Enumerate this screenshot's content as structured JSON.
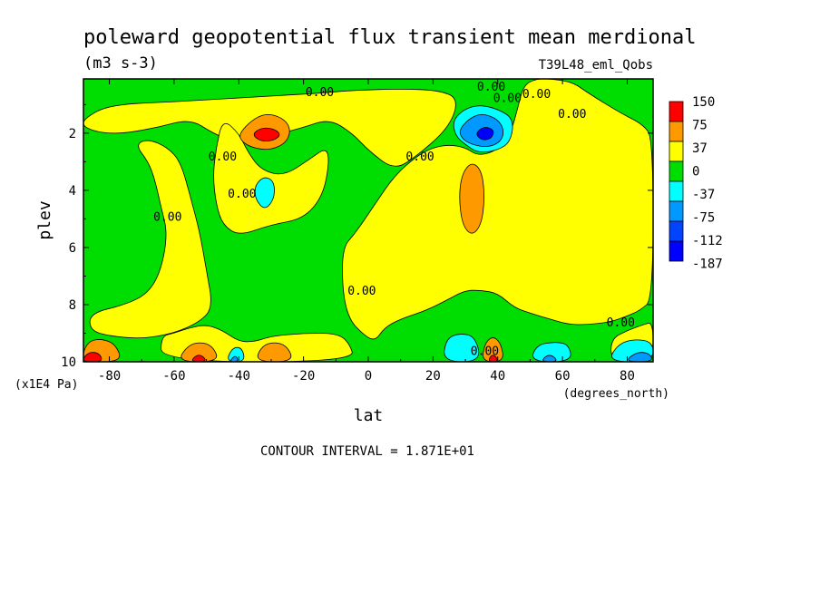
{
  "chart_data": {
    "type": "heatmap",
    "title": "poleward geopotential flux transient mean merdional",
    "units": "(m3 s-3)",
    "experiment": "T39L48_eml_Qobs",
    "xlabel": "lat",
    "x_units": "(degrees_north)",
    "ylabel": "plev",
    "y_units": "(x1E4 Pa)",
    "xlim": [
      -88,
      88
    ],
    "ylim": [
      0.1,
      10
    ],
    "y_inverted": true,
    "x_ticks": [
      -80,
      -60,
      -40,
      -20,
      0,
      20,
      40,
      60,
      80
    ],
    "x_tick_labels": [
      "-80",
      "-60",
      "-40",
      "-20",
      "0",
      "20",
      "40",
      "60",
      "80"
    ],
    "y_ticks": [
      2,
      4,
      6,
      8,
      10
    ],
    "y_tick_labels": [
      "2",
      "4",
      "6",
      "8",
      "10"
    ],
    "contour_interval_text": "CONTOUR INTERVAL = 1.871E+01",
    "contour_label": "0.00",
    "legend": {
      "position": "right",
      "labels": [
        "150",
        "75",
        "37",
        "0",
        "-37",
        "-75",
        "-112",
        "-187"
      ],
      "colors": [
        "#ff0000",
        "#ff9900",
        "#ffff00",
        "#00dd00",
        "#00ffff",
        "#0099ff",
        "#0044ff",
        "#0000ff"
      ]
    },
    "background_fill": {
      "category": "-37 to 0",
      "color": "#00dd00"
    },
    "regions": [
      {
        "category": "0 to 37",
        "color": "#ffff00",
        "points": [
          [
            -88,
            1.5
          ],
          [
            -80,
            1.0
          ],
          [
            -60,
            0.9
          ],
          [
            -45,
            0.8
          ],
          [
            -30,
            0.7
          ],
          [
            -15,
            0.6
          ],
          [
            -5,
            0.5
          ],
          [
            10,
            0.45
          ],
          [
            22,
            0.5
          ],
          [
            28,
            0.8
          ],
          [
            25,
            1.8
          ],
          [
            15,
            2.8
          ],
          [
            8,
            3.3
          ],
          [
            0,
            2.6
          ],
          [
            -5,
            2.0
          ],
          [
            -12,
            1.5
          ],
          [
            -20,
            1.8
          ],
          [
            -30,
            2.1
          ],
          [
            -40,
            2.4
          ],
          [
            -48,
            2.0
          ],
          [
            -55,
            1.5
          ],
          [
            -65,
            1.8
          ],
          [
            -75,
            2.0
          ],
          [
            -82,
            2.0
          ],
          [
            -88,
            1.8
          ]
        ]
      },
      {
        "category": "0 to 37",
        "color": "#ffff00",
        "points": [
          [
            48,
            0.3
          ],
          [
            52,
            0.1
          ],
          [
            56,
            0.1
          ],
          [
            63,
            0.2
          ],
          [
            68,
            0.6
          ],
          [
            78,
            1.3
          ],
          [
            85,
            1.7
          ],
          [
            88,
            2.2
          ],
          [
            88,
            7.8
          ],
          [
            84,
            8.2
          ],
          [
            80,
            8.4
          ],
          [
            75,
            8.6
          ],
          [
            68,
            8.7
          ],
          [
            62,
            8.7
          ],
          [
            56,
            8.5
          ],
          [
            50,
            8.3
          ],
          [
            45,
            8.1
          ],
          [
            40,
            7.6
          ],
          [
            35,
            7.5
          ],
          [
            30,
            7.5
          ],
          [
            25,
            7.8
          ],
          [
            18,
            8.2
          ],
          [
            10,
            8.5
          ],
          [
            5,
            8.8
          ],
          [
            2,
            9.3
          ],
          [
            -2,
            9.0
          ],
          [
            -6,
            8.5
          ],
          [
            -8,
            7.5
          ],
          [
            -8,
            6.0
          ],
          [
            -4,
            5.5
          ],
          [
            2,
            4.5
          ],
          [
            8,
            3.5
          ],
          [
            15,
            2.8
          ],
          [
            20,
            2.5
          ],
          [
            25,
            2.4
          ],
          [
            30,
            2.5
          ],
          [
            34,
            2.8
          ],
          [
            40,
            2.6
          ],
          [
            44,
            2.0
          ],
          [
            46,
            1.2
          ]
        ]
      },
      {
        "category": "0 to 37",
        "color": "#ffff00",
        "points": [
          [
            -86,
            8.3
          ],
          [
            -75,
            8.0
          ],
          [
            -68,
            7.6
          ],
          [
            -64,
            6.8
          ],
          [
            -62,
            5.5
          ],
          [
            -64,
            4.6
          ],
          [
            -66,
            3.6
          ],
          [
            -68,
            3.0
          ],
          [
            -72,
            2.4
          ],
          [
            -68,
            2.2
          ],
          [
            -62,
            2.5
          ],
          [
            -58,
            3.0
          ],
          [
            -55,
            4.2
          ],
          [
            -52,
            5.5
          ],
          [
            -50,
            6.8
          ],
          [
            -48,
            8.1
          ],
          [
            -52,
            8.6
          ],
          [
            -60,
            9.0
          ],
          [
            -70,
            9.2
          ],
          [
            -80,
            9.1
          ],
          [
            -86,
            8.9
          ]
        ]
      },
      {
        "category": "0 to 37",
        "color": "#ffff00",
        "points": [
          [
            -45,
            1.5
          ],
          [
            -40,
            2.0
          ],
          [
            -37,
            2.7
          ],
          [
            -33,
            3.3
          ],
          [
            -26,
            3.5
          ],
          [
            -18,
            2.9
          ],
          [
            -13,
            2.5
          ],
          [
            -12,
            3.0
          ],
          [
            -14,
            4.2
          ],
          [
            -20,
            5.0
          ],
          [
            -30,
            5.2
          ],
          [
            -40,
            5.6
          ],
          [
            -45,
            5.2
          ],
          [
            -47,
            4.5
          ],
          [
            -48,
            3.5
          ],
          [
            -47,
            2.5
          ]
        ]
      },
      {
        "category": "0 to 37",
        "color": "#ffff00",
        "points": [
          [
            -64,
            9.1
          ],
          [
            -60,
            9.0
          ],
          [
            -55,
            8.8
          ],
          [
            -50,
            8.7
          ],
          [
            -45,
            8.9
          ],
          [
            -40,
            9.3
          ],
          [
            -35,
            9.3
          ],
          [
            -30,
            9.1
          ],
          [
            -20,
            9.0
          ],
          [
            -10,
            9.0
          ],
          [
            -6,
            9.3
          ],
          [
            -4,
            10.0
          ],
          [
            -64,
            10.0
          ]
        ]
      },
      {
        "category": "0 to 37",
        "color": "#ffff00",
        "points": [
          [
            75,
            9.2
          ],
          [
            80,
            8.9
          ],
          [
            85,
            8.7
          ],
          [
            88,
            8.6
          ],
          [
            88,
            10.0
          ],
          [
            75,
            10.0
          ]
        ]
      },
      {
        "category": "37 to 75",
        "color": "#ff9900",
        "points": [
          [
            -40,
            2.05
          ],
          [
            -37,
            1.65
          ],
          [
            -33,
            1.35
          ],
          [
            -29,
            1.35
          ],
          [
            -25,
            1.6
          ],
          [
            -24,
            2.0
          ],
          [
            -26,
            2.4
          ],
          [
            -31,
            2.6
          ],
          [
            -36,
            2.5
          ],
          [
            -39,
            2.3
          ]
        ]
      },
      {
        "category": "37 to 75",
        "color": "#ff9900",
        "points": [
          [
            28,
            4.2
          ],
          [
            29,
            3.4
          ],
          [
            32,
            3.0
          ],
          [
            35,
            3.3
          ],
          [
            36,
            4.2
          ],
          [
            35,
            5.2
          ],
          [
            32,
            5.6
          ],
          [
            29,
            5.2
          ]
        ]
      },
      {
        "category": "37 to 75",
        "color": "#ff9900",
        "points": [
          [
            -88,
            9.6
          ],
          [
            -86,
            9.25
          ],
          [
            -82,
            9.2
          ],
          [
            -78,
            9.4
          ],
          [
            -76,
            10.0
          ],
          [
            -88,
            10.0
          ]
        ]
      },
      {
        "category": "37 to 75",
        "color": "#ff9900",
        "points": [
          [
            -59,
            10.0
          ],
          [
            -56,
            9.45
          ],
          [
            -52,
            9.3
          ],
          [
            -48,
            9.45
          ],
          [
            -46,
            10.0
          ]
        ]
      },
      {
        "category": "37 to 75",
        "color": "#ff9900",
        "points": [
          [
            -35,
            10.0
          ],
          [
            -33,
            9.45
          ],
          [
            -29,
            9.3
          ],
          [
            -25,
            9.45
          ],
          [
            -23,
            10.0
          ]
        ]
      },
      {
        "category": "37 to 75",
        "color": "#ff9900",
        "points": [
          [
            35,
            10.0
          ],
          [
            36,
            9.35
          ],
          [
            38.5,
            9.1
          ],
          [
            41,
            9.35
          ],
          [
            42,
            10.0
          ]
        ]
      },
      {
        "category": "75 to 150",
        "color": "#ff0000",
        "points": [
          [
            -36,
            2.05
          ],
          [
            -33,
            1.8
          ],
          [
            -29,
            1.85
          ],
          [
            -27,
            2.05
          ],
          [
            -29,
            2.25
          ],
          [
            -33,
            2.3
          ]
        ]
      },
      {
        "category": "75 to 150",
        "color": "#ff0000",
        "points": [
          [
            -88,
            9.85
          ],
          [
            -86,
            9.65
          ],
          [
            -83,
            9.7
          ],
          [
            -82,
            10.0
          ],
          [
            -88,
            10.0
          ]
        ]
      },
      {
        "category": "75 to 150",
        "color": "#ff0000",
        "points": [
          [
            -55,
            10.0
          ],
          [
            -53,
            9.75
          ],
          [
            -51,
            9.8
          ],
          [
            -50,
            10.0
          ]
        ]
      },
      {
        "category": "75 to 150",
        "color": "#ff0000",
        "points": [
          [
            37,
            10.0
          ],
          [
            38,
            9.75
          ],
          [
            39.5,
            9.8
          ],
          [
            40,
            10.0
          ]
        ]
      },
      {
        "category": "-75 to -37",
        "color": "#00ffff",
        "points": [
          [
            26,
            1.6
          ],
          [
            29,
            1.2
          ],
          [
            34,
            1.0
          ],
          [
            40,
            1.15
          ],
          [
            45,
            1.5
          ],
          [
            44,
            2.3
          ],
          [
            40,
            2.6
          ],
          [
            34,
            2.7
          ],
          [
            30,
            2.4
          ],
          [
            27,
            2.1
          ]
        ]
      },
      {
        "category": "-75 to -37",
        "color": "#00ffff",
        "points": [
          [
            -35,
            3.8
          ],
          [
            -32,
            3.5
          ],
          [
            -29,
            3.7
          ],
          [
            -29,
            4.3
          ],
          [
            -32,
            4.7
          ],
          [
            -35,
            4.3
          ]
        ]
      },
      {
        "category": "-75 to -37",
        "color": "#00ffff",
        "points": [
          [
            23,
            10.0
          ],
          [
            24,
            9.2
          ],
          [
            28,
            9.0
          ],
          [
            33,
            9.1
          ],
          [
            35,
            10.0
          ]
        ]
      },
      {
        "category": "-75 to -37",
        "color": "#00ffff",
        "points": [
          [
            50,
            10.0
          ],
          [
            52,
            9.4
          ],
          [
            58,
            9.3
          ],
          [
            62,
            9.4
          ],
          [
            63,
            10.0
          ]
        ]
      },
      {
        "category": "-75 to -37",
        "color": "#00ffff",
        "points": [
          [
            74,
            10.0
          ],
          [
            77,
            9.4
          ],
          [
            82,
            9.2
          ],
          [
            88,
            9.3
          ],
          [
            88,
            10.0
          ]
        ]
      },
      {
        "category": "-75 to -37",
        "color": "#00ffff",
        "points": [
          [
            -44,
            10.0
          ],
          [
            -42,
            9.5
          ],
          [
            -39,
            9.5
          ],
          [
            -38,
            10.0
          ]
        ]
      },
      {
        "category": "-112 to -75",
        "color": "#0099ff",
        "points": [
          [
            28,
            1.9
          ],
          [
            31,
            1.5
          ],
          [
            35,
            1.3
          ],
          [
            40,
            1.5
          ],
          [
            42,
            1.9
          ],
          [
            41,
            2.3
          ],
          [
            37,
            2.5
          ],
          [
            32,
            2.4
          ],
          [
            29,
            2.2
          ]
        ]
      },
      {
        "category": "-112 to -75",
        "color": "#0099ff",
        "points": [
          [
            -43,
            10.0
          ],
          [
            -41,
            9.75
          ],
          [
            -40,
            10.0
          ]
        ]
      },
      {
        "category": "-112 to -75",
        "color": "#0099ff",
        "points": [
          [
            53,
            10.0
          ],
          [
            56,
            9.7
          ],
          [
            59,
            10.0
          ]
        ]
      },
      {
        "category": "-112 to -75",
        "color": "#0099ff",
        "points": [
          [
            79,
            10.0
          ],
          [
            83,
            9.65
          ],
          [
            87,
            9.7
          ],
          [
            88,
            10.0
          ]
        ]
      },
      {
        "category": "-187 to -112",
        "color": "#0000ff",
        "points": [
          [
            33,
            2.0
          ],
          [
            36,
            1.75
          ],
          [
            39,
            1.9
          ],
          [
            38,
            2.2
          ],
          [
            35,
            2.25
          ]
        ]
      }
    ],
    "contour_label_positions": [
      [
        -15,
        0.55
      ],
      [
        38,
        0.35
      ],
      [
        43,
        0.75
      ],
      [
        52,
        0.6
      ],
      [
        63,
        1.3
      ],
      [
        -45,
        2.8
      ],
      [
        -39,
        4.1
      ],
      [
        -62,
        4.9
      ],
      [
        16,
        2.8
      ],
      [
        -2,
        7.5
      ],
      [
        78,
        8.6
      ],
      [
        36,
        9.6
      ]
    ]
  }
}
